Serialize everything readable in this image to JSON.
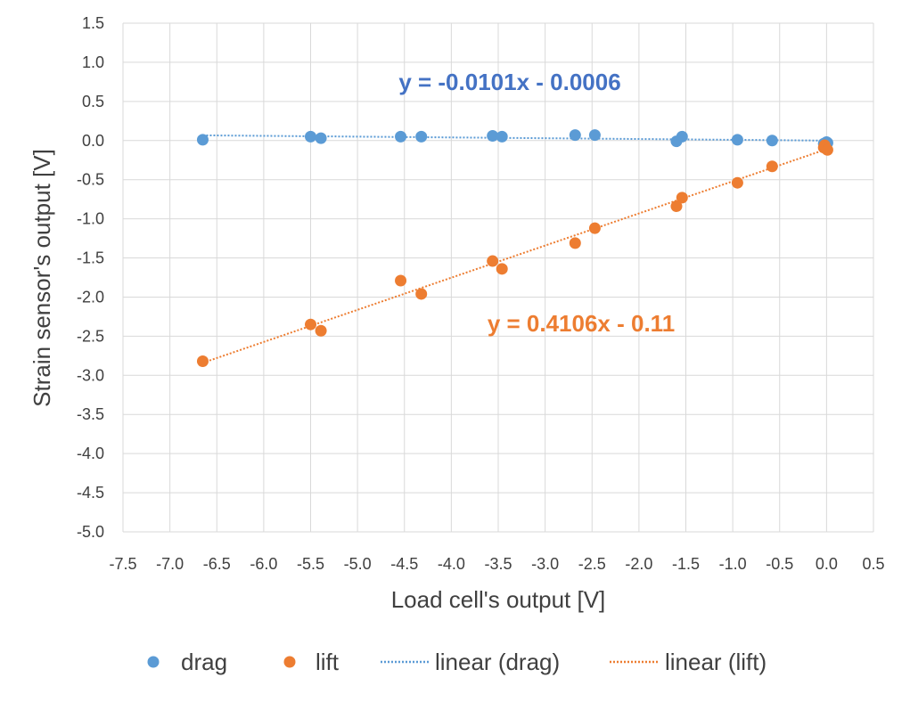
{
  "chart_data": {
    "type": "scatter",
    "title": "",
    "xlabel": "Load cell's output  [V]",
    "ylabel": "Strain sensor's output  [V]",
    "xlim": [
      -7.5,
      0.5
    ],
    "ylim": [
      -5.0,
      1.5
    ],
    "xticks": [
      -7.5,
      -7.0,
      -6.5,
      -6.0,
      -5.5,
      -5.0,
      -4.5,
      -4.0,
      -3.5,
      -3.0,
      -2.5,
      -2.0,
      -1.5,
      -1.0,
      -0.5,
      0.0,
      0.5
    ],
    "yticks": [
      -5.0,
      -4.5,
      -4.0,
      -3.5,
      -3.0,
      -2.5,
      -2.0,
      -1.5,
      -1.0,
      -0.5,
      0.0,
      0.5,
      1.0,
      1.5
    ],
    "xtick_labels": [
      "-7.5",
      "-7.0",
      "-6.5",
      "-6.0",
      "-5.5",
      "-5.0",
      "-4.5",
      "-4.0",
      "-3.5",
      "-3.0",
      "-2.5",
      "-2.0",
      "-1.5",
      "-1.0",
      "-0.5",
      "0.0",
      "0.5"
    ],
    "ytick_labels": [
      "-5.0",
      "-4.5",
      "-4.0",
      "-3.5",
      "-3.0",
      "-2.5",
      "-2.0",
      "-1.5",
      "-1.0",
      "-0.5",
      "0.0",
      "0.5",
      "1.0",
      "1.5"
    ],
    "grid": true,
    "legend_position": "bottom",
    "series": [
      {
        "name": "drag",
        "color": "#5B9BD5",
        "x": [
          -6.65,
          -5.5,
          -5.39,
          -4.54,
          -4.32,
          -3.56,
          -3.46,
          -2.68,
          -2.47,
          -1.6,
          -1.54,
          -0.95,
          -0.58,
          -0.03,
          0.0,
          -0.02,
          0.01
        ],
        "y": [
          0.01,
          0.05,
          0.03,
          0.05,
          0.05,
          0.06,
          0.05,
          0.07,
          0.07,
          -0.01,
          0.05,
          0.01,
          0.0,
          -0.04,
          -0.02,
          -0.06,
          -0.03
        ]
      },
      {
        "name": "lift",
        "color": "#ED7D31",
        "x": [
          -6.65,
          -5.5,
          -5.39,
          -4.54,
          -4.32,
          -3.56,
          -3.46,
          -2.68,
          -2.47,
          -1.6,
          -1.54,
          -0.95,
          -0.58,
          -0.03,
          0.0,
          -0.02,
          0.01
        ],
        "y": [
          -2.82,
          -2.35,
          -2.43,
          -1.79,
          -1.96,
          -1.54,
          -1.64,
          -1.31,
          -1.12,
          -0.84,
          -0.73,
          -0.54,
          -0.33,
          -0.09,
          -0.11,
          -0.06,
          -0.12
        ]
      }
    ],
    "trendlines": [
      {
        "name": "linear (drag)",
        "color": "#5B9BD5",
        "slope": -0.0101,
        "intercept": -0.0006,
        "x_range": [
          -6.65,
          0.01
        ],
        "equation": "y = -0.0101x - 0.0006"
      },
      {
        "name": "linear (lift)",
        "color": "#ED7D31",
        "slope": 0.4106,
        "intercept": -0.11,
        "x_range": [
          -6.65,
          0.01
        ],
        "equation": "y = 0.4106x - 0.11"
      }
    ],
    "legend": [
      {
        "label": "drag",
        "kind": "marker",
        "color": "#5B9BD5"
      },
      {
        "label": "lift",
        "kind": "marker",
        "color": "#ED7D31"
      },
      {
        "label": "linear (drag)",
        "kind": "line",
        "color": "#5B9BD5"
      },
      {
        "label": "linear (lift)",
        "kind": "line",
        "color": "#ED7D31"
      }
    ]
  }
}
